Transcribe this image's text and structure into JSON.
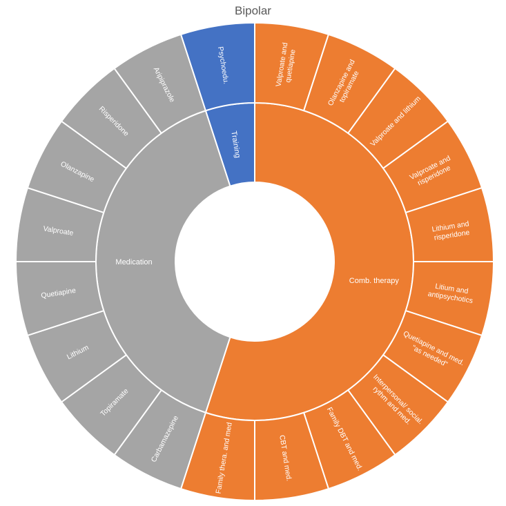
{
  "chart_data": {
    "type": "sunburst",
    "title": "Bipolar",
    "colors": {
      "Comb. therapy": "#ed7d31",
      "Medication": "#a5a5a5",
      "Training": "#4472c4"
    },
    "categories": [
      {
        "name": "Comb. therapy",
        "children": [
          {
            "label": "Valproate and\nquetiapine",
            "value": 1
          },
          {
            "label": "Olanzapine and\ntopiramate",
            "value": 1
          },
          {
            "label": "Valproate and lithium",
            "value": 1
          },
          {
            "label": "Valproate and\nrisperidone",
            "value": 1
          },
          {
            "label": "Lithium and\nrisperidone",
            "value": 1
          },
          {
            "label": "Litium and\nantipsychotics",
            "value": 1
          },
          {
            "label": "Quetiapine and med.\n\"as needed\"",
            "value": 1
          },
          {
            "label": "Interpersonal/ social.\nrythm and med.",
            "value": 1
          },
          {
            "label": "Family DBT and med.",
            "value": 1
          },
          {
            "label": "CBT and med.",
            "value": 1
          },
          {
            "label": "Family thera. and med",
            "value": 1
          }
        ]
      },
      {
        "name": "Medication",
        "children": [
          {
            "label": "Carbamazepine",
            "value": 1
          },
          {
            "label": "Topiramate",
            "value": 1
          },
          {
            "label": "Lithium",
            "value": 1
          },
          {
            "label": "Quetiapine",
            "value": 1
          },
          {
            "label": "Valproate",
            "value": 1
          },
          {
            "label": "Olanzapine",
            "value": 1
          },
          {
            "label": "Risperidone",
            "value": 1
          },
          {
            "label": "Aripiprazole",
            "value": 1
          }
        ]
      },
      {
        "name": "Training",
        "children": [
          {
            "label": "Psychoedu.",
            "value": 1
          }
        ]
      }
    ]
  }
}
